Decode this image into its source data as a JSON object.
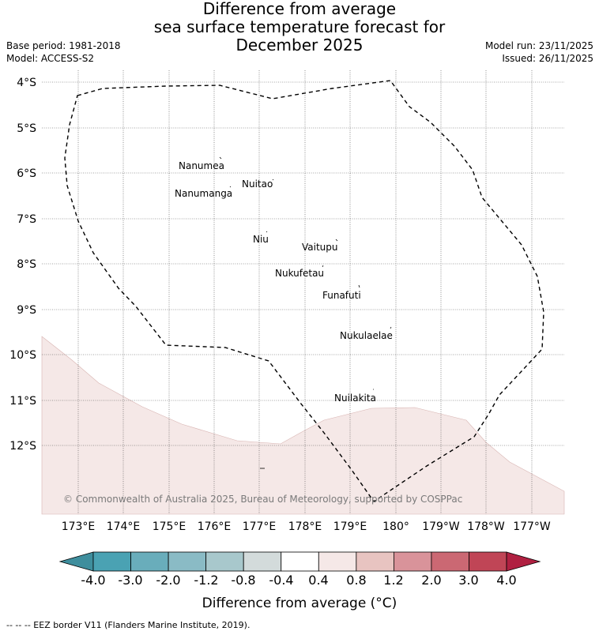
{
  "header": {
    "title_line1": "Difference from average",
    "title_line2": "sea surface temperature forecast for",
    "title_line3": "December 2025",
    "base_period": "Base period: 1981-2018",
    "model": "Model: ACCESS-S2",
    "model_run": "Model run: 23/11/2025",
    "issued": "Issued: 26/11/2025"
  },
  "map": {
    "lat_labels": [
      "4°S",
      "5°S",
      "6°S",
      "7°S",
      "8°S",
      "9°S",
      "10°S",
      "11°S",
      "12°S"
    ],
    "lon_labels": [
      "173°E",
      "174°E",
      "175°E",
      "176°E",
      "177°E",
      "178°E",
      "179°E",
      "180°",
      "179°W",
      "178°W",
      "177°W"
    ],
    "islands": [
      {
        "name": "Nanumea"
      },
      {
        "name": "Nuitao"
      },
      {
        "name": "Nanumanga"
      },
      {
        "name": "Niu"
      },
      {
        "name": "Vaitupu"
      },
      {
        "name": "Nukufetau"
      },
      {
        "name": "Funafuti"
      },
      {
        "name": "Nukulaelae"
      },
      {
        "name": "Nuilakita"
      }
    ],
    "copyright": "© Commonwealth of Australia 2025, Bureau of Meteorology, supported by COSPPac",
    "anomaly_band_value": "0.4 to 0.8"
  },
  "colorbar": {
    "ticks": [
      "-4.0",
      "-3.0",
      "-2.0",
      "-1.2",
      "-0.8",
      "-0.4",
      "0.4",
      "0.8",
      "1.2",
      "2.0",
      "3.0",
      "4.0"
    ],
    "colors": [
      "#3e8e9d",
      "#4aa2b3",
      "#69adbb",
      "#8abbc5",
      "#a8c8cc",
      "#d3dbdb",
      "#ffffff",
      "#f5e8e7",
      "#e8c4c1",
      "#d9939a",
      "#cb6873",
      "#c04556",
      "#b02041"
    ],
    "label": "Difference from average (°C)"
  },
  "footer": {
    "legend": "-- -- -- EEZ border V11 (Flanders Marine Institute, 2019)."
  }
}
